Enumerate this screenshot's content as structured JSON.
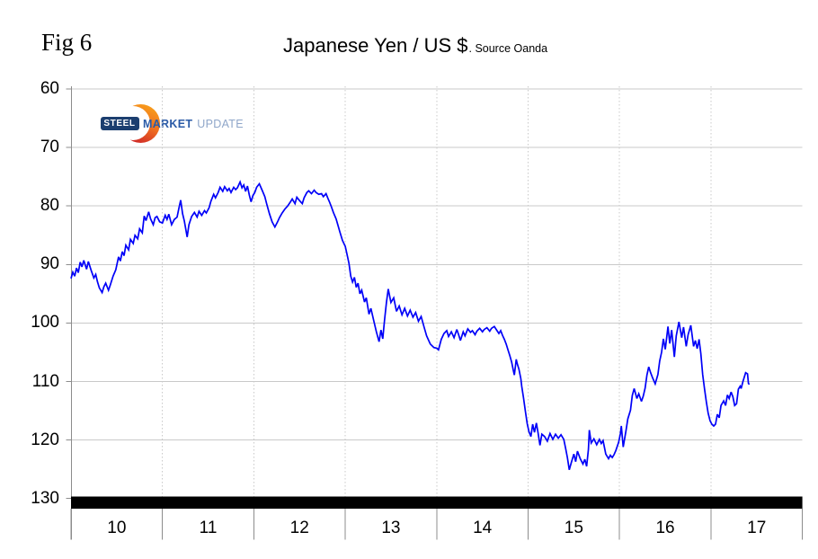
{
  "figure_label": "Fig 6",
  "title": {
    "main": "Japanese Yen / US $",
    "suffix": ". Source Oanda"
  },
  "logo": {
    "steel": "STEEL",
    "market": "MARKET",
    "update": "UPDATE",
    "colors": {
      "banner_navy": "#1b3e6f",
      "market_blue": "#2b5ba7",
      "update_blue": "#8fa6c9",
      "crescent_orange": "#f8a01b",
      "crescent_red": "#cd2328"
    }
  },
  "chart_data": {
    "type": "line",
    "title": "Japanese Yen / US $",
    "source": "Oanda",
    "series_name": "Japanese Yen per US Dollar",
    "line_color": "#0000f8",
    "grid_color": "#c9c9c9",
    "axis_color": "#8c8c8c",
    "y_axis": {
      "min": 60,
      "max": 130,
      "inverted": true,
      "ticks": [
        60,
        70,
        80,
        90,
        100,
        110,
        120,
        130
      ]
    },
    "x_axis": {
      "start_year": 2010,
      "end_year": 2018,
      "labels": [
        "10",
        "11",
        "12",
        "13",
        "14",
        "15",
        "16",
        "17"
      ]
    },
    "grid": {
      "horizontal": "solid",
      "vertical": "dotted"
    },
    "floor_bar": {
      "color": "#000000",
      "from_value": 130,
      "to_value": 132
    },
    "points": [
      [
        2010.0,
        92.4
      ],
      [
        2010.02,
        91.3
      ],
      [
        2010.04,
        92.0
      ],
      [
        2010.06,
        90.6
      ],
      [
        2010.08,
        91.4
      ],
      [
        2010.1,
        89.6
      ],
      [
        2010.12,
        90.4
      ],
      [
        2010.14,
        89.3
      ],
      [
        2010.17,
        90.8
      ],
      [
        2010.19,
        89.5
      ],
      [
        2010.22,
        91.0
      ],
      [
        2010.25,
        92.3
      ],
      [
        2010.27,
        91.7
      ],
      [
        2010.29,
        93.0
      ],
      [
        2010.31,
        94.0
      ],
      [
        2010.34,
        94.8
      ],
      [
        2010.36,
        93.8
      ],
      [
        2010.38,
        93.2
      ],
      [
        2010.41,
        94.4
      ],
      [
        2010.43,
        93.5
      ],
      [
        2010.46,
        92.0
      ],
      [
        2010.49,
        90.9
      ],
      [
        2010.52,
        88.7
      ],
      [
        2010.54,
        89.4
      ],
      [
        2010.56,
        87.8
      ],
      [
        2010.58,
        88.5
      ],
      [
        2010.6,
        86.7
      ],
      [
        2010.63,
        87.5
      ],
      [
        2010.65,
        85.7
      ],
      [
        2010.68,
        86.4
      ],
      [
        2010.7,
        85.0
      ],
      [
        2010.73,
        85.6
      ],
      [
        2010.75,
        83.9
      ],
      [
        2010.78,
        84.6
      ],
      [
        2010.8,
        81.7
      ],
      [
        2010.82,
        82.5
      ],
      [
        2010.85,
        81.0
      ],
      [
        2010.87,
        82.2
      ],
      [
        2010.9,
        83.2
      ],
      [
        2010.92,
        82.0
      ],
      [
        2010.94,
        81.8
      ],
      [
        2010.97,
        82.7
      ],
      [
        2011.0,
        82.9
      ],
      [
        2011.03,
        81.6
      ],
      [
        2011.05,
        82.3
      ],
      [
        2011.07,
        81.4
      ],
      [
        2011.1,
        83.2
      ],
      [
        2011.13,
        82.3
      ],
      [
        2011.16,
        81.9
      ],
      [
        2011.18,
        80.4
      ],
      [
        2011.2,
        79.0
      ],
      [
        2011.22,
        81.3
      ],
      [
        2011.24,
        82.6
      ],
      [
        2011.27,
        85.3
      ],
      [
        2011.29,
        83.2
      ],
      [
        2011.32,
        81.8
      ],
      [
        2011.35,
        81.1
      ],
      [
        2011.38,
        81.9
      ],
      [
        2011.4,
        80.9
      ],
      [
        2011.43,
        81.6
      ],
      [
        2011.46,
        80.8
      ],
      [
        2011.48,
        81.2
      ],
      [
        2011.51,
        80.3
      ],
      [
        2011.53,
        79.2
      ],
      [
        2011.56,
        78.0
      ],
      [
        2011.58,
        78.6
      ],
      [
        2011.61,
        77.7
      ],
      [
        2011.63,
        76.8
      ],
      [
        2011.66,
        77.5
      ],
      [
        2011.68,
        76.7
      ],
      [
        2011.71,
        77.4
      ],
      [
        2011.73,
        77.0
      ],
      [
        2011.75,
        77.7
      ],
      [
        2011.78,
        76.8
      ],
      [
        2011.8,
        77.2
      ],
      [
        2011.82,
        76.9
      ],
      [
        2011.85,
        75.9
      ],
      [
        2011.87,
        76.9
      ],
      [
        2011.89,
        76.4
      ],
      [
        2011.91,
        77.5
      ],
      [
        2011.93,
        76.6
      ],
      [
        2011.95,
        78.1
      ],
      [
        2011.97,
        79.3
      ],
      [
        2011.99,
        78.2
      ],
      [
        2012.01,
        77.7
      ],
      [
        2012.03,
        76.8
      ],
      [
        2012.06,
        76.2
      ],
      [
        2012.09,
        77.3
      ],
      [
        2012.12,
        78.4
      ],
      [
        2012.14,
        79.6
      ],
      [
        2012.17,
        81.3
      ],
      [
        2012.2,
        82.7
      ],
      [
        2012.23,
        83.6
      ],
      [
        2012.26,
        82.7
      ],
      [
        2012.28,
        82.0
      ],
      [
        2012.31,
        81.2
      ],
      [
        2012.34,
        80.5
      ],
      [
        2012.37,
        80.0
      ],
      [
        2012.4,
        79.3
      ],
      [
        2012.42,
        78.8
      ],
      [
        2012.45,
        79.6
      ],
      [
        2012.47,
        78.5
      ],
      [
        2012.5,
        79.1
      ],
      [
        2012.53,
        79.6
      ],
      [
        2012.55,
        78.6
      ],
      [
        2012.58,
        77.7
      ],
      [
        2012.6,
        77.4
      ],
      [
        2012.63,
        77.9
      ],
      [
        2012.66,
        77.3
      ],
      [
        2012.68,
        77.7
      ],
      [
        2012.71,
        78.0
      ],
      [
        2012.74,
        77.9
      ],
      [
        2012.76,
        78.4
      ],
      [
        2012.79,
        77.9
      ],
      [
        2012.81,
        78.7
      ],
      [
        2012.83,
        79.4
      ],
      [
        2012.85,
        80.2
      ],
      [
        2012.87,
        81.1
      ],
      [
        2012.9,
        82.2
      ],
      [
        2012.92,
        83.3
      ],
      [
        2012.94,
        84.4
      ],
      [
        2012.97,
        85.9
      ],
      [
        2013.0,
        86.9
      ],
      [
        2013.02,
        88.3
      ],
      [
        2013.04,
        89.8
      ],
      [
        2013.06,
        92.0
      ],
      [
        2013.08,
        93.0
      ],
      [
        2013.1,
        92.2
      ],
      [
        2013.12,
        93.9
      ],
      [
        2013.14,
        93.2
      ],
      [
        2013.16,
        95.0
      ],
      [
        2013.18,
        94.4
      ],
      [
        2013.21,
        96.4
      ],
      [
        2013.23,
        95.7
      ],
      [
        2013.26,
        98.5
      ],
      [
        2013.28,
        97.5
      ],
      [
        2013.31,
        99.5
      ],
      [
        2013.34,
        101.5
      ],
      [
        2013.37,
        103.2
      ],
      [
        2013.39,
        101.2
      ],
      [
        2013.41,
        102.7
      ],
      [
        2013.43,
        99.5
      ],
      [
        2013.45,
        96.5
      ],
      [
        2013.47,
        94.2
      ],
      [
        2013.5,
        96.5
      ],
      [
        2013.53,
        95.7
      ],
      [
        2013.56,
        98.0
      ],
      [
        2013.59,
        97.1
      ],
      [
        2013.62,
        98.6
      ],
      [
        2013.65,
        97.5
      ],
      [
        2013.68,
        98.8
      ],
      [
        2013.71,
        97.8
      ],
      [
        2013.74,
        99.0
      ],
      [
        2013.77,
        98.2
      ],
      [
        2013.8,
        99.7
      ],
      [
        2013.83,
        98.9
      ],
      [
        2013.86,
        100.6
      ],
      [
        2013.89,
        102.2
      ],
      [
        2013.93,
        103.6
      ],
      [
        2013.97,
        104.2
      ],
      [
        2014.0,
        104.3
      ],
      [
        2014.02,
        104.6
      ],
      [
        2014.05,
        102.8
      ],
      [
        2014.08,
        101.8
      ],
      [
        2014.11,
        101.3
      ],
      [
        2014.13,
        102.3
      ],
      [
        2014.16,
        101.5
      ],
      [
        2014.19,
        102.5
      ],
      [
        2014.22,
        101.1
      ],
      [
        2014.24,
        102.0
      ],
      [
        2014.26,
        103.0
      ],
      [
        2014.29,
        101.5
      ],
      [
        2014.31,
        102.2
      ],
      [
        2014.34,
        101.0
      ],
      [
        2014.37,
        101.6
      ],
      [
        2014.39,
        101.3
      ],
      [
        2014.42,
        102.0
      ],
      [
        2014.44,
        101.4
      ],
      [
        2014.47,
        100.9
      ],
      [
        2014.5,
        101.5
      ],
      [
        2014.52,
        101.1
      ],
      [
        2014.55,
        100.8
      ],
      [
        2014.58,
        101.4
      ],
      [
        2014.6,
        100.9
      ],
      [
        2014.63,
        100.6
      ],
      [
        2014.66,
        101.3
      ],
      [
        2014.68,
        101.8
      ],
      [
        2014.7,
        101.3
      ],
      [
        2014.72,
        102.1
      ],
      [
        2014.74,
        102.8
      ],
      [
        2014.76,
        103.6
      ],
      [
        2014.78,
        104.6
      ],
      [
        2014.8,
        105.6
      ],
      [
        2014.82,
        106.7
      ],
      [
        2014.84,
        108.2
      ],
      [
        2014.85,
        108.9
      ],
      [
        2014.87,
        106.2
      ],
      [
        2014.88,
        106.9
      ],
      [
        2014.9,
        107.9
      ],
      [
        2014.92,
        109.5
      ],
      [
        2014.93,
        110.8
      ],
      [
        2014.95,
        112.8
      ],
      [
        2014.97,
        115.0
      ],
      [
        2014.99,
        117.2
      ],
      [
        2015.01,
        118.6
      ],
      [
        2015.03,
        119.4
      ],
      [
        2015.05,
        117.3
      ],
      [
        2015.07,
        118.7
      ],
      [
        2015.09,
        117.1
      ],
      [
        2015.11,
        118.9
      ],
      [
        2015.13,
        120.9
      ],
      [
        2015.15,
        119.0
      ],
      [
        2015.18,
        119.4
      ],
      [
        2015.21,
        120.2
      ],
      [
        2015.24,
        118.9
      ],
      [
        2015.27,
        119.9
      ],
      [
        2015.3,
        119.0
      ],
      [
        2015.33,
        119.7
      ],
      [
        2015.36,
        119.1
      ],
      [
        2015.39,
        119.9
      ],
      [
        2015.41,
        121.4
      ],
      [
        2015.43,
        123.0
      ],
      [
        2015.45,
        125.1
      ],
      [
        2015.47,
        124.0
      ],
      [
        2015.5,
        122.4
      ],
      [
        2015.52,
        123.7
      ],
      [
        2015.54,
        121.9
      ],
      [
        2015.57,
        123.2
      ],
      [
        2015.6,
        124.1
      ],
      [
        2015.62,
        123.3
      ],
      [
        2015.64,
        124.5
      ],
      [
        2015.66,
        121.6
      ],
      [
        2015.67,
        118.3
      ],
      [
        2015.69,
        120.5
      ],
      [
        2015.72,
        119.8
      ],
      [
        2015.75,
        120.8
      ],
      [
        2015.78,
        119.9
      ],
      [
        2015.8,
        120.6
      ],
      [
        2015.82,
        120.1
      ],
      [
        2015.85,
        122.4
      ],
      [
        2015.88,
        123.2
      ],
      [
        2015.9,
        122.6
      ],
      [
        2015.92,
        123.0
      ],
      [
        2015.94,
        122.5
      ],
      [
        2015.96,
        121.8
      ],
      [
        2015.99,
        120.4
      ],
      [
        2016.01,
        118.9
      ],
      [
        2016.02,
        117.6
      ],
      [
        2016.04,
        121.2
      ],
      [
        2016.07,
        118.5
      ],
      [
        2016.09,
        116.4
      ],
      [
        2016.12,
        114.9
      ],
      [
        2016.14,
        112.4
      ],
      [
        2016.16,
        111.2
      ],
      [
        2016.19,
        112.9
      ],
      [
        2016.21,
        112.1
      ],
      [
        2016.24,
        113.4
      ],
      [
        2016.26,
        112.5
      ],
      [
        2016.28,
        111.1
      ],
      [
        2016.3,
        108.9
      ],
      [
        2016.32,
        107.5
      ],
      [
        2016.34,
        108.5
      ],
      [
        2016.36,
        109.3
      ],
      [
        2016.39,
        110.4
      ],
      [
        2016.42,
        108.8
      ],
      [
        2016.44,
        106.5
      ],
      [
        2016.46,
        105.0
      ],
      [
        2016.48,
        102.7
      ],
      [
        2016.5,
        104.5
      ],
      [
        2016.53,
        100.6
      ],
      [
        2016.55,
        103.5
      ],
      [
        2016.57,
        101.2
      ],
      [
        2016.6,
        105.8
      ],
      [
        2016.62,
        102.2
      ],
      [
        2016.65,
        99.8
      ],
      [
        2016.68,
        102.5
      ],
      [
        2016.7,
        100.7
      ],
      [
        2016.73,
        104.0
      ],
      [
        2016.75,
        102.0
      ],
      [
        2016.78,
        100.4
      ],
      [
        2016.81,
        104.0
      ],
      [
        2016.83,
        103.0
      ],
      [
        2016.85,
        104.4
      ],
      [
        2016.87,
        102.8
      ],
      [
        2016.89,
        105.3
      ],
      [
        2016.91,
        108.8
      ],
      [
        2016.93,
        111.3
      ],
      [
        2016.95,
        113.5
      ],
      [
        2016.97,
        115.4
      ],
      [
        2016.99,
        116.7
      ],
      [
        2017.01,
        117.3
      ],
      [
        2017.03,
        117.6
      ],
      [
        2017.05,
        117.3
      ],
      [
        2017.07,
        115.6
      ],
      [
        2017.09,
        116.2
      ],
      [
        2017.11,
        114.1
      ],
      [
        2017.14,
        113.3
      ],
      [
        2017.16,
        114.1
      ],
      [
        2017.18,
        112.3
      ],
      [
        2017.2,
        112.9
      ],
      [
        2017.22,
        111.8
      ],
      [
        2017.24,
        112.6
      ],
      [
        2017.26,
        114.1
      ],
      [
        2017.28,
        113.8
      ],
      [
        2017.3,
        111.3
      ],
      [
        2017.32,
        110.8
      ],
      [
        2017.33,
        111.2
      ],
      [
        2017.35,
        110.0
      ],
      [
        2017.36,
        109.5
      ],
      [
        2017.38,
        108.5
      ],
      [
        2017.4,
        108.7
      ],
      [
        2017.41,
        110.3
      ],
      [
        2017.42,
        110.5
      ]
    ]
  }
}
